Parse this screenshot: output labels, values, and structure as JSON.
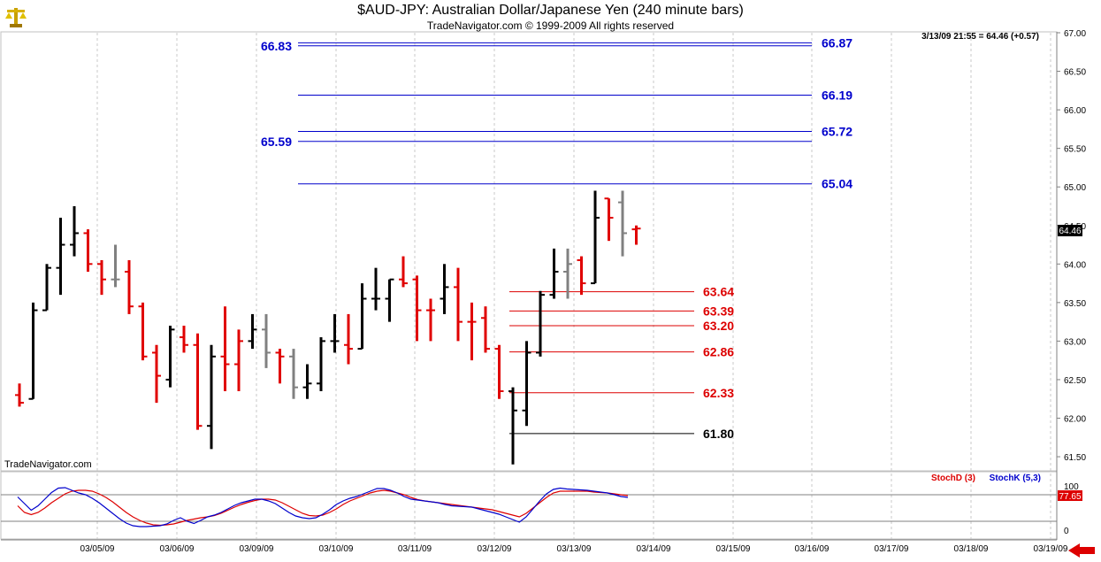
{
  "header": {
    "title": "$AUD-JPY:  Australian Dollar/Japanese Yen  (240 minute bars)",
    "subtitle": "TradeNavigator.com © 1999-2009 All rights reserved",
    "logo_icon": "scales-logo-icon"
  },
  "readout": "3/13/09 21:55 = 64.46 (+0.57)",
  "watermark": "TradeNavigator.com",
  "colors": {
    "up_bar": "#000000",
    "down_bar": "#e00000",
    "neutral_bar": "#808080",
    "fib_upper": "#0000aa",
    "fib_lower": "#dd0000",
    "stoch_d": "#dd0000",
    "stoch_k": "#0000cc"
  },
  "chart_data": [
    {
      "type": "ohlc",
      "title": "$AUD-JPY:  Australian Dollar/Japanese Yen  (240 minute bars)",
      "ylim": [
        61.3,
        67.1
      ],
      "y_ticks": [
        "67.00",
        "66.50",
        "66.00",
        "65.50",
        "65.00",
        "64.50",
        "64.00",
        "63.50",
        "63.00",
        "62.50",
        "62.00",
        "61.50"
      ],
      "x_ticks": [
        "03/05/09",
        "03/06/09",
        "03/09/09",
        "03/10/09",
        "03/11/09",
        "03/12/09",
        "03/13/09",
        "03/14/09",
        "03/15/09",
        "03/16/09",
        "03/17/09",
        "03/18/09",
        "03/19/09"
      ],
      "last_price_label": "64.46",
      "bars": [
        {
          "o": 62.3,
          "h": 62.45,
          "l": 62.15,
          "c": 62.2,
          "dir": "down"
        },
        {
          "o": 62.25,
          "h": 63.5,
          "l": 62.25,
          "c": 63.4,
          "dir": "up"
        },
        {
          "o": 63.4,
          "h": 64.0,
          "l": 63.4,
          "c": 63.95,
          "dir": "up"
        },
        {
          "o": 63.95,
          "h": 64.6,
          "l": 63.6,
          "c": 64.25,
          "dir": "up"
        },
        {
          "o": 64.25,
          "h": 64.75,
          "l": 64.1,
          "c": 64.4,
          "dir": "up"
        },
        {
          "o": 64.4,
          "h": 64.45,
          "l": 63.9,
          "c": 64.0,
          "dir": "down"
        },
        {
          "o": 64.0,
          "h": 64.05,
          "l": 63.6,
          "c": 63.8,
          "dir": "down"
        },
        {
          "o": 63.8,
          "h": 64.25,
          "l": 63.7,
          "c": 63.8,
          "dir": "neutral"
        },
        {
          "o": 63.9,
          "h": 64.05,
          "l": 63.35,
          "c": 63.45,
          "dir": "down"
        },
        {
          "o": 63.45,
          "h": 63.5,
          "l": 62.75,
          "c": 62.8,
          "dir": "down"
        },
        {
          "o": 62.85,
          "h": 62.95,
          "l": 62.2,
          "c": 62.55,
          "dir": "down"
        },
        {
          "o": 62.5,
          "h": 63.2,
          "l": 62.4,
          "c": 63.15,
          "dir": "up"
        },
        {
          "o": 63.05,
          "h": 63.2,
          "l": 62.85,
          "c": 62.95,
          "dir": "down"
        },
        {
          "o": 62.95,
          "h": 63.1,
          "l": 61.85,
          "c": 61.9,
          "dir": "down"
        },
        {
          "o": 61.9,
          "h": 62.95,
          "l": 61.6,
          "c": 62.8,
          "dir": "up"
        },
        {
          "o": 62.8,
          "h": 63.45,
          "l": 62.35,
          "c": 62.7,
          "dir": "down"
        },
        {
          "o": 62.7,
          "h": 63.15,
          "l": 62.35,
          "c": 63.0,
          "dir": "down"
        },
        {
          "o": 63.0,
          "h": 63.35,
          "l": 62.9,
          "c": 63.15,
          "dir": "up"
        },
        {
          "o": 63.15,
          "h": 63.35,
          "l": 62.65,
          "c": 62.85,
          "dir": "neutral"
        },
        {
          "o": 62.85,
          "h": 62.9,
          "l": 62.45,
          "c": 62.8,
          "dir": "down"
        },
        {
          "o": 62.8,
          "h": 62.9,
          "l": 62.25,
          "c": 62.4,
          "dir": "neutral"
        },
        {
          "o": 62.4,
          "h": 62.7,
          "l": 62.25,
          "c": 62.45,
          "dir": "up"
        },
        {
          "o": 62.45,
          "h": 63.05,
          "l": 62.35,
          "c": 63.0,
          "dir": "up"
        },
        {
          "o": 63.0,
          "h": 63.35,
          "l": 62.85,
          "c": 63.0,
          "dir": "up"
        },
        {
          "o": 62.95,
          "h": 63.35,
          "l": 62.7,
          "c": 62.9,
          "dir": "down"
        },
        {
          "o": 62.9,
          "h": 63.75,
          "l": 62.9,
          "c": 63.55,
          "dir": "up"
        },
        {
          "o": 63.55,
          "h": 63.95,
          "l": 63.4,
          "c": 63.55,
          "dir": "up"
        },
        {
          "o": 63.55,
          "h": 63.8,
          "l": 63.25,
          "c": 63.8,
          "dir": "up"
        },
        {
          "o": 63.8,
          "h": 64.1,
          "l": 63.7,
          "c": 63.75,
          "dir": "down"
        },
        {
          "o": 63.8,
          "h": 63.85,
          "l": 63.0,
          "c": 63.4,
          "dir": "down"
        },
        {
          "o": 63.4,
          "h": 63.55,
          "l": 63.0,
          "c": 63.4,
          "dir": "down"
        },
        {
          "o": 63.55,
          "h": 64.0,
          "l": 63.35,
          "c": 63.7,
          "dir": "up"
        },
        {
          "o": 63.7,
          "h": 63.95,
          "l": 63.0,
          "c": 63.25,
          "dir": "down"
        },
        {
          "o": 63.25,
          "h": 63.5,
          "l": 62.75,
          "c": 63.25,
          "dir": "down"
        },
        {
          "o": 63.3,
          "h": 63.45,
          "l": 62.85,
          "c": 62.9,
          "dir": "down"
        },
        {
          "o": 62.9,
          "h": 62.95,
          "l": 62.25,
          "c": 62.35,
          "dir": "down"
        },
        {
          "o": 62.35,
          "h": 62.4,
          "l": 61.4,
          "c": 62.1,
          "dir": "up"
        },
        {
          "o": 62.1,
          "h": 63.0,
          "l": 61.9,
          "c": 62.85,
          "dir": "up"
        },
        {
          "o": 62.85,
          "h": 63.65,
          "l": 62.8,
          "c": 63.6,
          "dir": "up"
        },
        {
          "o": 63.6,
          "h": 64.2,
          "l": 63.55,
          "c": 63.9,
          "dir": "up"
        },
        {
          "o": 63.9,
          "h": 64.2,
          "l": 63.55,
          "c": 64.0,
          "dir": "neutral"
        },
        {
          "o": 64.05,
          "h": 64.1,
          "l": 63.6,
          "c": 63.75,
          "dir": "down"
        },
        {
          "o": 63.75,
          "h": 64.95,
          "l": 63.75,
          "c": 64.6,
          "dir": "up"
        },
        {
          "o": 64.85,
          "h": 64.85,
          "l": 64.3,
          "c": 64.6,
          "dir": "down"
        },
        {
          "o": 64.8,
          "h": 64.95,
          "l": 64.1,
          "c": 64.4,
          "dir": "neutral"
        },
        {
          "o": 64.45,
          "h": 64.5,
          "l": 64.25,
          "c": 64.46,
          "dir": "down"
        }
      ],
      "levels": [
        {
          "value": 66.87,
          "label": "66.87",
          "side": "right",
          "color": "#0000cc"
        },
        {
          "value": 66.83,
          "label": "66.83",
          "side": "left",
          "color": "#0000cc"
        },
        {
          "value": 66.19,
          "label": "66.19",
          "side": "right",
          "color": "#0000cc"
        },
        {
          "value": 65.72,
          "label": "65.72",
          "side": "right",
          "color": "#0000cc"
        },
        {
          "value": 65.59,
          "label": "65.59",
          "side": "left",
          "color": "#0000cc"
        },
        {
          "value": 65.04,
          "label": "65.04",
          "side": "right",
          "color": "#0000cc"
        },
        {
          "value": 63.64,
          "label": "63.64",
          "side": "right",
          "color": "#dd0000"
        },
        {
          "value": 63.39,
          "label": "63.39",
          "side": "right",
          "color": "#dd0000"
        },
        {
          "value": 63.2,
          "label": "63.20",
          "side": "right",
          "color": "#dd0000"
        },
        {
          "value": 62.86,
          "label": "62.86",
          "side": "right",
          "color": "#dd0000"
        },
        {
          "value": 62.33,
          "label": "62.33",
          "side": "right",
          "color": "#dd0000"
        },
        {
          "value": 61.8,
          "label": "61.80",
          "side": "right",
          "color": "#000000"
        }
      ]
    },
    {
      "type": "line",
      "title": "",
      "ylim": [
        0,
        100
      ],
      "y_ticks": [
        "100",
        "0"
      ],
      "reference_lines": [
        80,
        20
      ],
      "last_value_label": "77.65",
      "series": [
        {
          "name": "StochD (3)",
          "color": "#dd0000",
          "values": [
            55,
            40,
            35,
            40,
            50,
            62,
            72,
            82,
            88,
            90,
            90,
            88,
            82,
            74,
            64,
            52,
            40,
            30,
            22,
            16,
            12,
            11,
            12,
            14,
            18,
            22,
            25,
            28,
            30,
            33,
            38,
            45,
            52,
            58,
            63,
            67,
            70,
            70,
            68,
            62,
            54,
            46,
            38,
            33,
            32,
            34,
            40,
            48,
            58,
            66,
            72,
            78,
            84,
            88,
            90,
            88,
            84,
            80,
            74,
            69,
            66,
            64,
            62,
            60,
            58,
            56,
            54,
            52,
            50,
            48,
            46,
            42,
            38,
            34,
            30,
            38,
            50,
            62,
            74,
            84,
            88,
            88,
            88,
            88,
            88,
            86,
            85,
            84,
            82,
            80,
            78
          ]
        },
        {
          "name": "StochK (5,3)",
          "color": "#0000cc",
          "values": [
            75,
            60,
            45,
            55,
            70,
            85,
            95,
            96,
            90,
            84,
            80,
            72,
            62,
            50,
            38,
            26,
            16,
            10,
            8,
            8,
            9,
            10,
            14,
            22,
            28,
            20,
            15,
            22,
            30,
            34,
            40,
            48,
            56,
            62,
            66,
            70,
            70,
            66,
            60,
            50,
            40,
            32,
            28,
            26,
            28,
            36,
            46,
            58,
            66,
            72,
            76,
            82,
            88,
            94,
            94,
            90,
            84,
            76,
            70,
            68,
            66,
            64,
            62,
            58,
            55,
            54,
            53,
            52,
            48,
            44,
            40,
            36,
            30,
            24,
            18,
            30,
            48,
            66,
            82,
            92,
            95,
            93,
            92,
            91,
            90,
            88,
            86,
            84,
            80,
            76,
            74
          ]
        }
      ]
    }
  ]
}
